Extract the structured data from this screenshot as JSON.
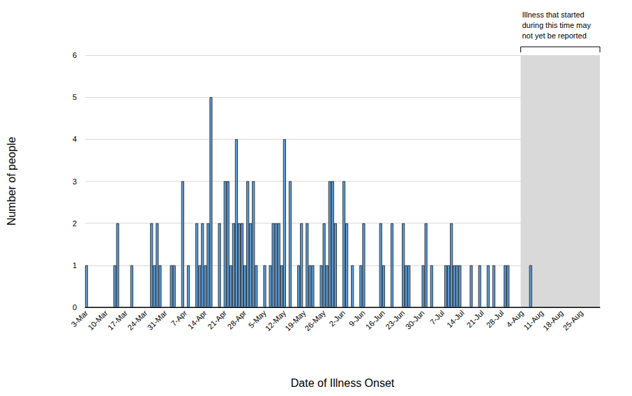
{
  "chart_data": {
    "type": "bar",
    "x_label": "Date of Illness Onset",
    "y_label": "Number of people",
    "categories": [
      "3-Mar",
      null,
      null,
      null,
      null,
      null,
      null,
      "10-Mar",
      null,
      null,
      null,
      null,
      null,
      null,
      "17-Mar",
      null,
      null,
      null,
      null,
      null,
      null,
      "24-Mar",
      null,
      null,
      null,
      null,
      null,
      null,
      "31-Mar",
      null,
      null,
      null,
      null,
      null,
      null,
      "7-Apr",
      null,
      null,
      null,
      null,
      null,
      null,
      "14-Apr",
      null,
      null,
      null,
      null,
      null,
      null,
      "21-Apr",
      null,
      null,
      null,
      null,
      null,
      null,
      "28-Apr",
      null,
      null,
      null,
      null,
      null,
      null,
      "5-May",
      null,
      null,
      null,
      null,
      null,
      null,
      "12-May",
      null,
      null,
      null,
      null,
      null,
      null,
      "19-May",
      null,
      null,
      null,
      null,
      null,
      null,
      "26-May",
      null,
      null,
      null,
      null,
      null,
      null,
      "2-Jun",
      null,
      null,
      null,
      null,
      null,
      null,
      "9-Jun",
      null,
      null,
      null,
      null,
      null,
      null,
      "16-Jun",
      null,
      null,
      null,
      null,
      null,
      null,
      "23-Jun",
      null,
      null,
      null,
      null,
      null,
      null,
      "30-Jun",
      null,
      null,
      null,
      null,
      null,
      null,
      "7-Jul",
      null,
      null,
      null,
      null,
      null,
      null,
      "14-Jul",
      null,
      null,
      null,
      null,
      null,
      null,
      "21-Jul",
      null,
      null,
      null,
      null,
      null,
      null,
      "28-Jul",
      null,
      null,
      null,
      null,
      null,
      null,
      "4-Aug",
      null,
      null,
      null,
      null,
      null,
      null,
      "11-Aug",
      null,
      null,
      null,
      null,
      null,
      null,
      "18-Aug",
      null,
      null,
      null,
      null,
      null,
      null,
      "25-Aug",
      null,
      null,
      null,
      null,
      null,
      null
    ],
    "values": [
      1,
      0,
      0,
      0,
      0,
      0,
      0,
      0,
      0,
      0,
      1,
      2,
      0,
      0,
      0,
      0,
      1,
      0,
      0,
      0,
      0,
      0,
      0,
      2,
      1,
      2,
      1,
      0,
      0,
      0,
      1,
      1,
      0,
      0,
      3,
      0,
      1,
      0,
      0,
      2,
      1,
      2,
      1,
      2,
      5,
      0,
      0,
      2,
      0,
      3,
      3,
      1,
      2,
      4,
      2,
      2,
      1,
      3,
      2,
      3,
      1,
      0,
      0,
      1,
      0,
      1,
      2,
      2,
      2,
      1,
      4,
      0,
      3,
      0,
      0,
      1,
      2,
      0,
      2,
      1,
      1,
      0,
      0,
      1,
      2,
      1,
      3,
      3,
      2,
      0,
      0,
      3,
      2,
      0,
      1,
      0,
      0,
      1,
      2,
      0,
      0,
      0,
      0,
      0,
      2,
      1,
      0,
      0,
      2,
      0,
      0,
      0,
      2,
      1,
      1,
      0,
      0,
      0,
      0,
      1,
      2,
      0,
      1,
      0,
      0,
      0,
      0,
      1,
      1,
      2,
      1,
      1,
      1,
      0,
      0,
      0,
      1,
      0,
      0,
      1,
      0,
      0,
      1,
      0,
      1,
      0,
      0,
      0,
      1,
      1,
      0,
      0,
      0,
      0,
      0,
      0,
      0,
      1,
      0,
      0,
      0,
      0,
      0,
      0,
      0,
      0,
      0,
      0,
      0,
      0,
      0,
      0,
      0,
      0,
      0,
      0,
      0,
      0,
      0,
      0,
      0,
      0
    ],
    "color": "#5b9bd5",
    "ylim": [
      0,
      6
    ],
    "yticks": [
      0,
      1,
      2,
      3,
      4,
      5,
      6
    ],
    "grid": true,
    "annotation": {
      "text": "Illness that started during this time may not yet be reported",
      "start": "4-Aug"
    }
  }
}
